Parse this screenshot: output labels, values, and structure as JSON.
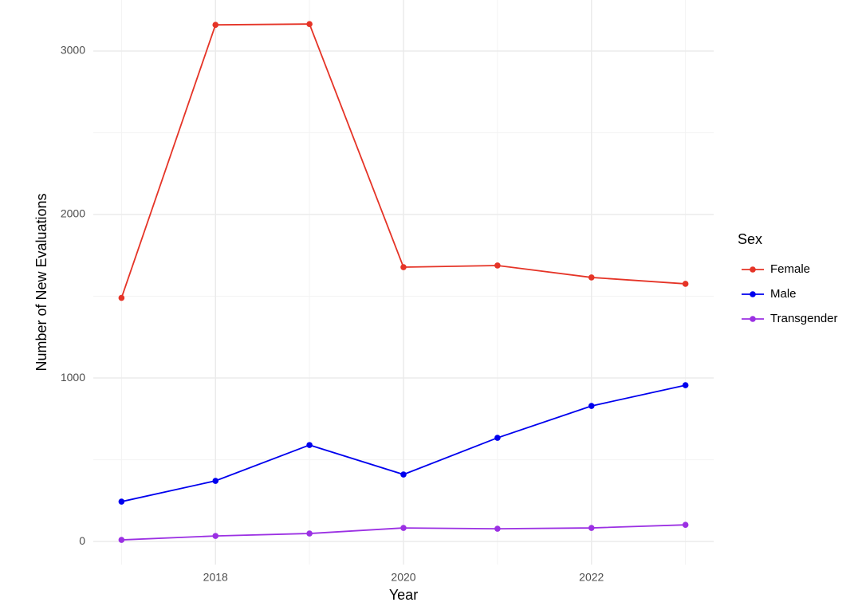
{
  "chart_data": {
    "type": "line",
    "x_label": "Year",
    "y_label": "Number of New Evaluations",
    "x": [
      2017,
      2018,
      2019,
      2020,
      2021,
      2022,
      2023
    ],
    "series": [
      {
        "name": "Female",
        "color": "#e53427",
        "values": [
          1490,
          3160,
          3165,
          1678,
          1688,
          1615,
          1576
        ]
      },
      {
        "name": "Male",
        "color": "#0000ee",
        "values": [
          244,
          371,
          590,
          410,
          634,
          829,
          956
        ]
      },
      {
        "name": "Transgender",
        "color": "#9b30e3",
        "values": [
          10,
          34,
          49,
          83,
          78,
          83,
          102
        ]
      }
    ],
    "legend_title": "Sex",
    "legend": "right",
    "xlim": [
      2016.7,
      2023.3
    ],
    "ylim": [
      -141,
      3312
    ],
    "xticks": [
      2018,
      2020,
      2022
    ],
    "yticks": [
      0,
      1000,
      2000,
      3000
    ],
    "x_minor_ticks": [
      2017,
      2019,
      2021,
      2023
    ],
    "y_minor_ticks": [
      500,
      1500,
      2500
    ],
    "grid": true
  }
}
